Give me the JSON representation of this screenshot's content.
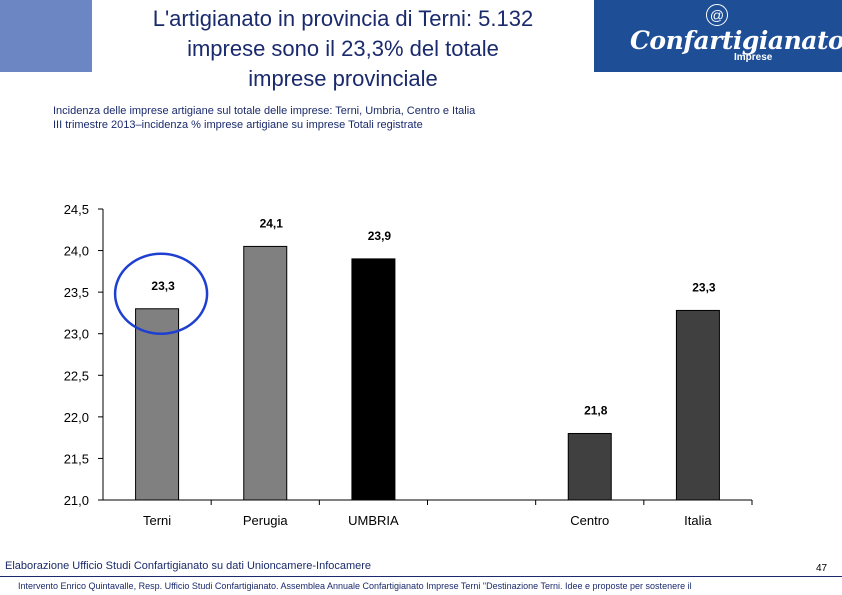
{
  "header": {
    "title_lines": [
      "L'artigianato in provincia di Terni: 5.132",
      "imprese sono il 23,3% del totale",
      "imprese provinciale"
    ],
    "logo": {
      "at": "@",
      "word": "Confartigianato",
      "sub": "Imprese",
      "bg_color": "#1d4e96"
    }
  },
  "subtitle_lines": [
    "Incidenza delle imprese artigiane sul totale delle imprese: Terni, Umbria, Centro e Italia",
    "III trimestre 2013–incidenza % imprese artigiane su imprese Totali registrate"
  ],
  "chart_data": {
    "type": "bar",
    "categories": [
      "Terni",
      "Perugia",
      "UMBRIA",
      "",
      "Centro",
      "Italia"
    ],
    "values": [
      23.3,
      24.05,
      23.9,
      null,
      21.8,
      23.28
    ],
    "data_labels": [
      "23,3",
      "24,1",
      "23,9",
      "",
      "21,8",
      "23,3"
    ],
    "colors": [
      "#808080",
      "#808080",
      "#000000",
      "",
      "#404040",
      "#404040"
    ],
    "ylim": [
      21.0,
      24.5
    ],
    "yticks": [
      "21,0",
      "21,5",
      "22,0",
      "22,5",
      "23,0",
      "23,5",
      "24,0",
      "24,5"
    ],
    "ytick_values": [
      21.0,
      21.5,
      22.0,
      22.5,
      23.0,
      23.5,
      24.0,
      24.5
    ],
    "highlight_category": "Terni",
    "highlight_color": "#1f3fd0",
    "grid": false
  },
  "footer": {
    "source": "Elaborazione Ufficio Studi Confartigianato su dati Unioncamere-Infocamere",
    "page_number": "47",
    "note": "Intervento Enrico Quintavalle, Resp. Ufficio Studi Confartigianato. Assemblea Annuale Confartigianato Imprese Terni \"Destinazione Terni. Idee e proposte per sostenere il"
  }
}
